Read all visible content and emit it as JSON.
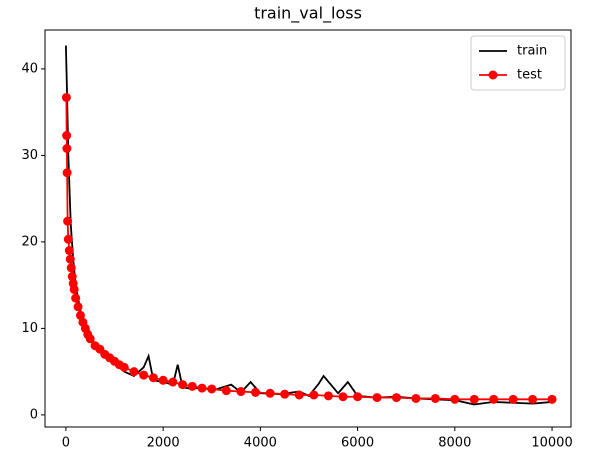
{
  "chart_data": {
    "type": "line",
    "title": "train_val_loss",
    "xlim": [
      -430,
      10390
    ],
    "xticks": [
      0,
      2000,
      4000,
      6000,
      8000,
      10000
    ],
    "ylim": [
      -1.4,
      44.5
    ],
    "yticks": [
      0,
      10,
      20,
      30,
      40
    ],
    "legend": "upper right",
    "series": [
      {
        "name": "train",
        "color": "#000000",
        "marker": false,
        "x": [
          0,
          20,
          50,
          100,
          150,
          200,
          300,
          400,
          500,
          600,
          700,
          800,
          1000,
          1200,
          1400,
          1600,
          1700,
          1800,
          2000,
          2200,
          2300,
          2400,
          2600,
          2800,
          3000,
          3400,
          3600,
          3800,
          4000,
          4400,
          4800,
          5000,
          5200,
          5300,
          5600,
          5800,
          6000,
          6400,
          6800,
          7200,
          7600,
          8000,
          8400,
          8800,
          9200,
          9600,
          10000
        ],
        "values": [
          42.7,
          38,
          30,
          22,
          18,
          15,
          12,
          10.5,
          9.5,
          8,
          7.5,
          7,
          6,
          5,
          4.5,
          5.5,
          6.8,
          4,
          3.8,
          3.5,
          5.8,
          3.2,
          3,
          3.2,
          2.8,
          3.5,
          2.6,
          3.8,
          2.5,
          2.4,
          2.7,
          2.2,
          3.6,
          4.5,
          2.5,
          3.8,
          2.2,
          2,
          2.1,
          1.9,
          1.8,
          1.7,
          1.2,
          1.5,
          1.4,
          1.3,
          1.5
        ]
      },
      {
        "name": "test",
        "color": "#ff0000",
        "marker": true,
        "x": [
          10,
          15,
          20,
          25,
          35,
          50,
          70,
          90,
          110,
          130,
          150,
          170,
          200,
          250,
          300,
          350,
          400,
          450,
          500,
          600,
          700,
          800,
          900,
          1000,
          1100,
          1200,
          1400,
          1600,
          1800,
          2000,
          2200,
          2400,
          2600,
          2800,
          3000,
          3300,
          3600,
          3900,
          4200,
          4500,
          4800,
          5100,
          5400,
          5700,
          6000,
          6400,
          6800,
          7200,
          7600,
          8000,
          8400,
          8800,
          9200,
          9600,
          10000
        ],
        "values": [
          36.7,
          32.3,
          30.8,
          28,
          22.4,
          20.3,
          19,
          18,
          17,
          16,
          15.2,
          14.5,
          13.5,
          12.5,
          11.5,
          10.7,
          10,
          9.3,
          8.8,
          8,
          7.6,
          7,
          6.6,
          6.2,
          5.8,
          5.5,
          5,
          4.6,
          4.3,
          4,
          3.8,
          3.5,
          3.3,
          3.1,
          3,
          2.8,
          2.7,
          2.6,
          2.5,
          2.4,
          2.3,
          2.3,
          2.2,
          2.1,
          2.1,
          2,
          2,
          1.9,
          1.9,
          1.8,
          1.8,
          1.8,
          1.8,
          1.8,
          1.8
        ]
      }
    ]
  }
}
